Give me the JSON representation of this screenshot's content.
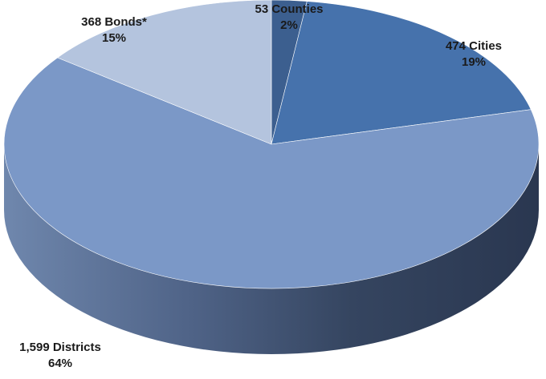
{
  "chart_data": {
    "type": "pie",
    "title": "",
    "three_d": true,
    "slices": [
      {
        "count": 53,
        "name": "Counties",
        "label": "53 Counties",
        "percent_label": "2%",
        "value": 53,
        "color": "#3c5f8f"
      },
      {
        "count": 474,
        "name": "Cities",
        "label": "474 Cities",
        "percent_label": "19%",
        "value": 474,
        "color": "#4672ac"
      },
      {
        "count": 1599,
        "name": "Districts",
        "label": "1,599 Districts",
        "percent_label": "64%",
        "value": 1599,
        "color": "#7b98c7"
      },
      {
        "count": 368,
        "name": "Bonds*",
        "label": "368 Bonds*",
        "percent_label": "15%",
        "value": 368,
        "color": "#b4c4de"
      }
    ],
    "start_angle_deg": 90,
    "direction": "clockwise"
  }
}
